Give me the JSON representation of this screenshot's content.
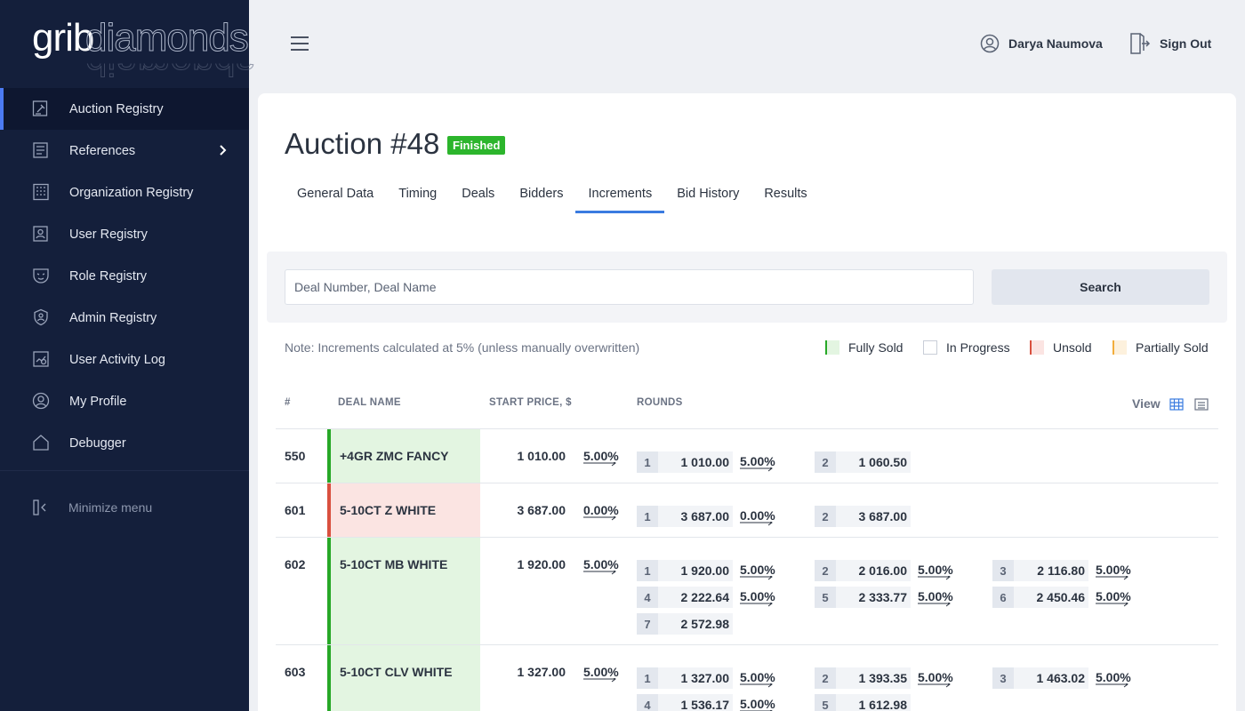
{
  "brand": {
    "part1": "grib",
    "part2": "diamonds"
  },
  "sidebar": {
    "items": [
      {
        "label": "Auction Registry",
        "icon": "auction-icon",
        "active": true
      },
      {
        "label": "References",
        "icon": "book-icon",
        "has_submenu": true
      },
      {
        "label": "Organization Registry",
        "icon": "building-icon"
      },
      {
        "label": "User Registry",
        "icon": "user-card-icon"
      },
      {
        "label": "Role Registry",
        "icon": "mask-icon"
      },
      {
        "label": "Admin Registry",
        "icon": "shield-icon"
      },
      {
        "label": "User Activity Log",
        "icon": "activity-icon"
      },
      {
        "label": "My Profile",
        "icon": "profile-icon"
      },
      {
        "label": "Debugger",
        "icon": "home-icon"
      }
    ],
    "minimize_label": "Minimize menu"
  },
  "header": {
    "user_name": "Darya Naumova",
    "sign_out": "Sign Out"
  },
  "page": {
    "title": "Auction #48",
    "status": "Finished",
    "tabs": [
      {
        "label": "General Data"
      },
      {
        "label": "Timing"
      },
      {
        "label": "Deals"
      },
      {
        "label": "Bidders"
      },
      {
        "label": "Increments",
        "active": true
      },
      {
        "label": "Bid History"
      },
      {
        "label": "Results"
      }
    ]
  },
  "search": {
    "placeholder": "Deal Number, Deal Name",
    "value": "",
    "button": "Search"
  },
  "note": "Note: Increments calculated at 5% (unless manually overwritten)",
  "legend": [
    {
      "label": "Fully Sold",
      "fill": "#e3f5e1",
      "edge": "#27a827"
    },
    {
      "label": "In Progress",
      "fill": "#ffffff",
      "edge": "#c9ced8"
    },
    {
      "label": "Unsold",
      "fill": "#fbe4e2",
      "edge": "#d9503f"
    },
    {
      "label": "Partially Sold",
      "fill": "#fdf1dd",
      "edge": "#f2ad3c"
    }
  ],
  "table": {
    "columns": {
      "num": "#",
      "deal_name": "DEAL NAME",
      "start_price": "START PRICE, $",
      "rounds": "ROUNDS"
    },
    "view_label": "View",
    "rows": [
      {
        "num": "550",
        "name": "+4GR ZMC FANCY",
        "status": "fully_sold",
        "start_price": "1 010.00",
        "increment": "5.00%",
        "rounds": [
          {
            "n": "1",
            "price": "1 010.00",
            "inc": "5.00%"
          },
          {
            "n": "2",
            "price": "1 060.50",
            "inc": ""
          }
        ]
      },
      {
        "num": "601",
        "name": "5-10CT Z WHITE",
        "status": "unsold",
        "start_price": "3 687.00",
        "increment": "0.00%",
        "rounds": [
          {
            "n": "1",
            "price": "3 687.00",
            "inc": "0.00%"
          },
          {
            "n": "2",
            "price": "3 687.00",
            "inc": ""
          }
        ]
      },
      {
        "num": "602",
        "name": "5-10CT MB WHITE",
        "status": "fully_sold",
        "start_price": "1 920.00",
        "increment": "5.00%",
        "rounds": [
          {
            "n": "1",
            "price": "1 920.00",
            "inc": "5.00%"
          },
          {
            "n": "2",
            "price": "2 016.00",
            "inc": "5.00%"
          },
          {
            "n": "3",
            "price": "2 116.80",
            "inc": "5.00%"
          },
          {
            "n": "4",
            "price": "2 222.64",
            "inc": "5.00%"
          },
          {
            "n": "5",
            "price": "2 333.77",
            "inc": "5.00%"
          },
          {
            "n": "6",
            "price": "2 450.46",
            "inc": "5.00%"
          },
          {
            "n": "7",
            "price": "2 572.98",
            "inc": ""
          }
        ]
      },
      {
        "num": "603",
        "name": "5-10CT CLV WHITE",
        "status": "fully_sold",
        "start_price": "1 327.00",
        "increment": "5.00%",
        "rounds": [
          {
            "n": "1",
            "price": "1 327.00",
            "inc": "5.00%"
          },
          {
            "n": "2",
            "price": "1 393.35",
            "inc": "5.00%"
          },
          {
            "n": "3",
            "price": "1 463.02",
            "inc": "5.00%"
          },
          {
            "n": "4",
            "price": "1 536.17",
            "inc": "5.00%"
          },
          {
            "n": "5",
            "price": "1 612.98",
            "inc": ""
          }
        ]
      }
    ]
  },
  "colors": {
    "sidebar_bg": "#141f3b",
    "accent": "#3a7be0",
    "badge_green": "#2cb52c",
    "fully_sold_fill": "#e3f5e1",
    "fully_sold_bar": "#27a827",
    "unsold_fill": "#fbe4e2",
    "unsold_bar": "#d9503f"
  }
}
